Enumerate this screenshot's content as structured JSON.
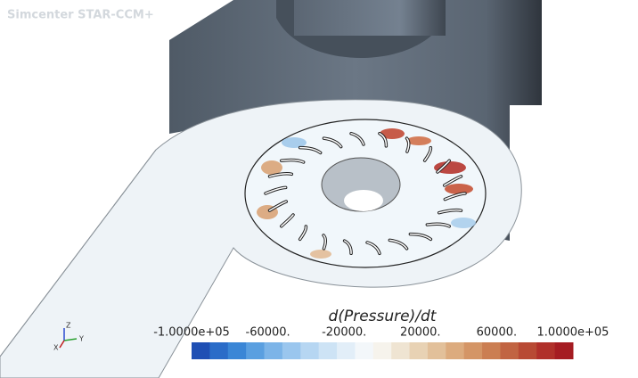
{
  "app_title": "Simcenter STAR-CCM+",
  "legend": {
    "title": "d(Pressure)/dt",
    "tick_labels": [
      "-1.0000e+05",
      "-60000.",
      "-20000.",
      "20000.",
      "60000.",
      "1.0000e+05"
    ]
  },
  "triad": {
    "z": "Z",
    "y": "Y",
    "x": "X"
  }
}
